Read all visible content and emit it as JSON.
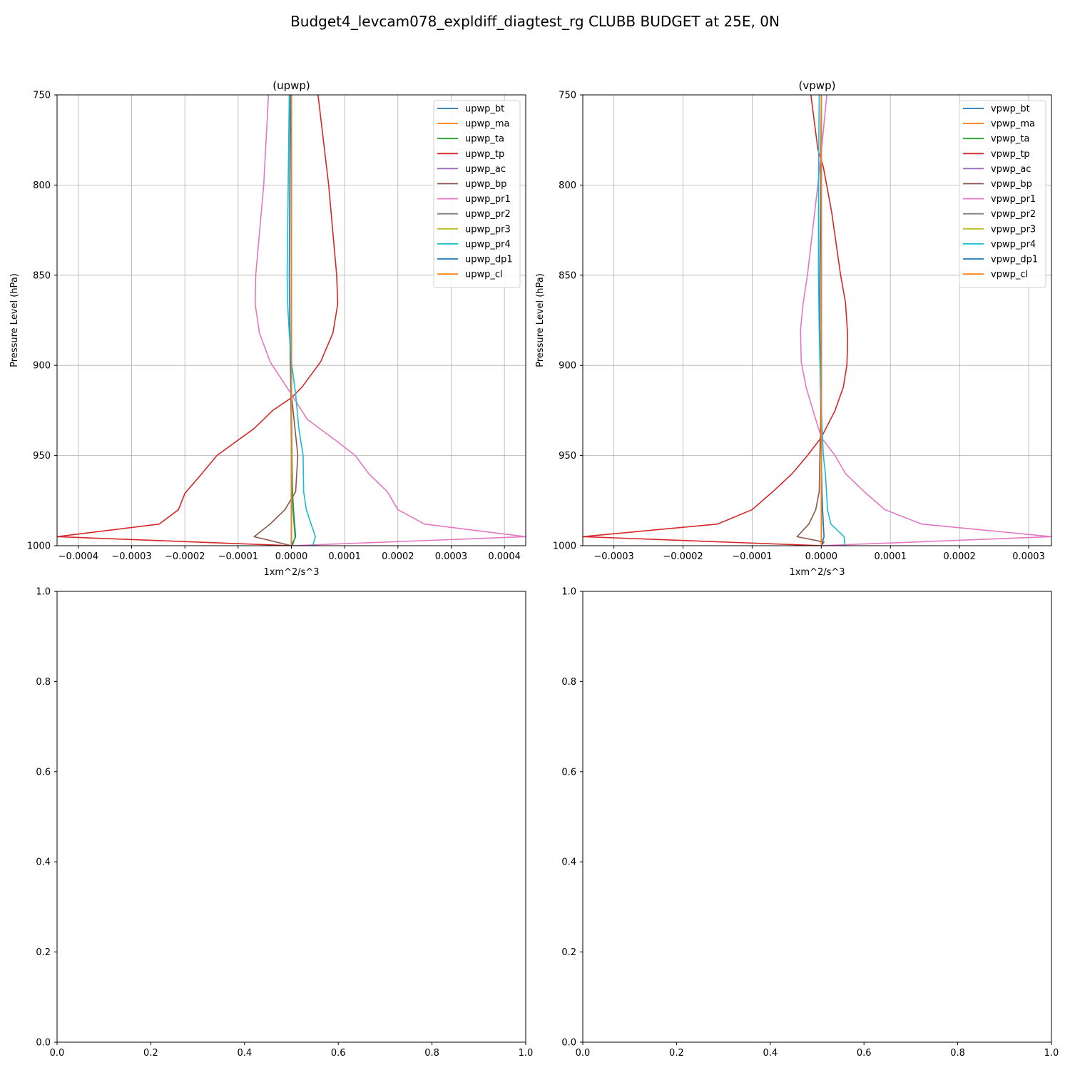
{
  "suptitle": "Budget4_levcam078_expldiff_diagtest_rg CLUBB BUDGET at 25E, 0N",
  "chart_data": [
    {
      "type": "line",
      "title": "(upwp)",
      "xlabel": "1xm^2/s^3",
      "ylabel": "Pressure Level (hPa)",
      "xlim": [
        -0.00044,
        0.00044
      ],
      "ylim": [
        1000,
        750
      ],
      "y_inverted": true,
      "grid": true,
      "legend": "upper right",
      "xticks": [
        -0.0004,
        -0.0003,
        -0.0002,
        -0.0001,
        0.0,
        0.0001,
        0.0002,
        0.0003,
        0.0004
      ],
      "xtick_labels": [
        "−0.0004",
        "−0.0003",
        "−0.0002",
        "−0.0001",
        "0.0000",
        "0.0001",
        "0.0002",
        "0.0003",
        "0.0004"
      ],
      "yticks": [
        750,
        800,
        850,
        900,
        950,
        1000
      ],
      "ytick_labels": [
        "750",
        "800",
        "850",
        "900",
        "950",
        "1000"
      ],
      "series": [
        {
          "name": "upwp_bt",
          "color": "#1f77b4",
          "x": [
            -2e-06,
            -3e-06,
            -4e-06,
            -3e-06,
            -1e-06,
            0,
            2e-06,
            4e-06,
            6e-06,
            8e-06,
            0
          ],
          "y": [
            750,
            800,
            850,
            880,
            916,
            950,
            970,
            980,
            988,
            995,
            1000
          ]
        },
        {
          "name": "upwp_ma",
          "color": "#ff7f0e",
          "x": [
            0,
            0,
            0,
            0,
            0,
            0,
            0,
            0,
            0,
            0,
            0
          ],
          "y": [
            750,
            800,
            850,
            880,
            916,
            950,
            970,
            980,
            988,
            995,
            1000
          ]
        },
        {
          "name": "upwp_ta",
          "color": "#2ca02c",
          "x": [
            0,
            0,
            0,
            0,
            0,
            1e-06,
            2e-06,
            3e-06,
            5e-06,
            7e-06,
            2e-06
          ],
          "y": [
            750,
            800,
            850,
            880,
            916,
            950,
            970,
            980,
            988,
            995,
            1000
          ]
        },
        {
          "name": "upwp_tp",
          "color": "#d62728",
          "x": [
            5e-05,
            7e-05,
            8.5e-05,
            8.7e-05,
            7.8e-05,
            5.5e-05,
            2e-05,
            0,
            -3.5e-05,
            -7e-05,
            -0.00014,
            -0.000168,
            -0.0002,
            -0.000212,
            -0.000248,
            -0.00044,
            0
          ],
          "y": [
            750,
            800,
            850,
            866,
            882,
            898,
            912,
            918,
            925,
            935,
            950,
            960,
            971,
            980,
            988,
            995,
            1000
          ]
        },
        {
          "name": "upwp_ac",
          "color": "#9467bd",
          "x": [
            0,
            0,
            0,
            0,
            0,
            0,
            0,
            0,
            0,
            0,
            0
          ],
          "y": [
            750,
            800,
            850,
            880,
            916,
            950,
            970,
            980,
            988,
            995,
            1000
          ]
        },
        {
          "name": "upwp_bp",
          "color": "#8c564b",
          "x": [
            0,
            0,
            0,
            0,
            0,
            1.2e-05,
            8e-06,
            -1.2e-05,
            -4e-05,
            -7e-05,
            0
          ],
          "y": [
            750,
            800,
            850,
            880,
            916,
            950,
            970,
            980,
            988,
            995,
            1000
          ]
        },
        {
          "name": "upwp_pr1",
          "color": "#e377c2",
          "x": [
            -4.3e-05,
            -5.2e-05,
            -6.7e-05,
            -6.8e-05,
            -6e-05,
            -4e-05,
            0,
            3e-05,
            8.5e-05,
            0.00012,
            0.000145,
            0.00018,
            0.0002,
            0.00025,
            0.00044,
            0
          ],
          "y": [
            750,
            800,
            850,
            866,
            882,
            898,
            916,
            930,
            942,
            950,
            960,
            970,
            980,
            988,
            995,
            1000
          ]
        },
        {
          "name": "upwp_pr2",
          "color": "#7f7f7f",
          "x": [
            0,
            0,
            0,
            0,
            0,
            0,
            0,
            0,
            0,
            0,
            0
          ],
          "y": [
            750,
            800,
            850,
            880,
            916,
            950,
            970,
            980,
            988,
            995,
            1000
          ]
        },
        {
          "name": "upwp_pr3",
          "color": "#bcbd22",
          "x": [
            0,
            0,
            0,
            0,
            0,
            0,
            0,
            0,
            0,
            0,
            0
          ],
          "y": [
            750,
            800,
            850,
            880,
            916,
            950,
            970,
            980,
            988,
            995,
            1000
          ]
        },
        {
          "name": "upwp_pr4",
          "color": "#17becf",
          "x": [
            -4e-06,
            -6e-06,
            -8e-06,
            -7e-06,
            -4e-06,
            0,
            8e-06,
            1.4e-05,
            2.2e-05,
            2.3e-05,
            2.8e-05,
            4.5e-05,
            4e-05
          ],
          "y": [
            750,
            800,
            850,
            866,
            882,
            898,
            916,
            935,
            950,
            970,
            980,
            995,
            1000
          ]
        },
        {
          "name": "upwp_dp1",
          "color": "#1f77b4",
          "x": [
            0,
            0,
            0,
            0,
            0,
            0,
            0,
            0,
            0,
            0,
            0
          ],
          "y": [
            750,
            800,
            850,
            880,
            916,
            950,
            970,
            980,
            988,
            995,
            1000
          ]
        },
        {
          "name": "upwp_cl",
          "color": "#ff7f0e",
          "x": [
            0,
            0,
            0,
            0,
            0,
            0,
            0,
            0,
            0,
            0,
            0
          ],
          "y": [
            750,
            800,
            850,
            880,
            916,
            950,
            970,
            980,
            988,
            995,
            1000
          ]
        }
      ]
    },
    {
      "type": "line",
      "title": "(vpwp)",
      "xlabel": "1xm^2/s^3",
      "ylabel": "Pressure Level (hPa)",
      "xlim": [
        -0.000345,
        0.000333
      ],
      "ylim": [
        1000,
        750
      ],
      "y_inverted": true,
      "grid": true,
      "legend": "upper right",
      "xticks": [
        -0.0003,
        -0.0002,
        -0.0001,
        0.0,
        0.0001,
        0.0002,
        0.0003
      ],
      "xtick_labels": [
        "−0.0003",
        "−0.0002",
        "−0.0001",
        "0.0000",
        "0.0001",
        "0.0002",
        "0.0003"
      ],
      "yticks": [
        750,
        800,
        850,
        900,
        950,
        1000
      ],
      "ytick_labels": [
        "750",
        "800",
        "850",
        "900",
        "950",
        "1000"
      ],
      "series": [
        {
          "name": "vpwp_bt",
          "color": "#1f77b4",
          "x": [
            0,
            -1e-06,
            -2e-06,
            -2e-06,
            -1e-06,
            0,
            1e-06,
            2e-06,
            3e-06,
            4e-06,
            0
          ],
          "y": [
            750,
            800,
            850,
            880,
            916,
            950,
            970,
            980,
            988,
            995,
            1000
          ]
        },
        {
          "name": "vpwp_ma",
          "color": "#ff7f0e",
          "x": [
            0,
            0,
            0,
            0,
            0,
            0,
            0,
            0,
            0,
            0,
            0
          ],
          "y": [
            750,
            800,
            850,
            880,
            916,
            950,
            970,
            980,
            988,
            995,
            1000
          ]
        },
        {
          "name": "vpwp_ta",
          "color": "#2ca02c",
          "x": [
            0,
            0,
            0,
            0,
            0,
            0,
            0,
            0,
            0,
            0,
            0
          ],
          "y": [
            750,
            800,
            850,
            880,
            916,
            950,
            970,
            980,
            988,
            995,
            1000
          ]
        },
        {
          "name": "vpwp_tp",
          "color": "#d62728",
          "x": [
            -1.5e-05,
            -5e-06,
            3e-06,
            1.5e-05,
            2.8e-05,
            3.5e-05,
            3.8e-05,
            3.8e-05,
            3.7e-05,
            3.2e-05,
            2e-05,
            0,
            -2e-05,
            -4.2e-05,
            -7e-05,
            -0.0001,
            -0.00015,
            -0.000345,
            0
          ],
          "y": [
            750,
            780,
            790,
            815,
            850,
            865,
            882,
            890,
            900,
            912,
            925,
            940,
            950,
            960,
            970,
            980,
            988,
            995,
            1000
          ]
        },
        {
          "name": "vpwp_ac",
          "color": "#9467bd",
          "x": [
            0,
            0,
            0,
            0,
            0,
            0,
            0,
            0,
            0,
            0,
            0
          ],
          "y": [
            750,
            800,
            850,
            880,
            916,
            950,
            970,
            980,
            988,
            995,
            1000
          ]
        },
        {
          "name": "vpwp_bp",
          "color": "#8c564b",
          "x": [
            0,
            0,
            0,
            0,
            0,
            -2e-06,
            -3e-06,
            -8e-06,
            -1.8e-05,
            -3.5e-05,
            4e-06,
            0
          ],
          "y": [
            750,
            800,
            850,
            880,
            916,
            950,
            970,
            980,
            988,
            995,
            998,
            1000
          ]
        },
        {
          "name": "vpwp_pr1",
          "color": "#e377c2",
          "x": [
            8e-06,
            3e-06,
            -5e-06,
            -2e-05,
            -2.6e-05,
            -3e-05,
            -2.9e-05,
            -2.2e-05,
            -1.2e-05,
            0,
            2e-05,
            3.5e-05,
            6.2e-05,
            9.2e-05,
            0.000145,
            0.000333,
            -2e-06
          ],
          "y": [
            750,
            770,
            800,
            850,
            865,
            880,
            898,
            912,
            925,
            940,
            950,
            960,
            970,
            980,
            988,
            995,
            1000
          ]
        },
        {
          "name": "vpwp_pr2",
          "color": "#7f7f7f",
          "x": [
            0,
            0,
            0,
            0,
            0,
            0,
            0,
            0,
            0,
            0,
            0
          ],
          "y": [
            750,
            800,
            850,
            880,
            916,
            950,
            970,
            980,
            988,
            995,
            1000
          ]
        },
        {
          "name": "vpwp_pr3",
          "color": "#bcbd22",
          "x": [
            0,
            0,
            0,
            0,
            0,
            0,
            0,
            0,
            0,
            0,
            0
          ],
          "y": [
            750,
            800,
            850,
            880,
            916,
            950,
            970,
            980,
            988,
            995,
            1000
          ]
        },
        {
          "name": "vpwp_pr4",
          "color": "#17becf",
          "x": [
            -3e-06,
            -4e-06,
            -4e-06,
            -3e-06,
            -1e-06,
            3e-06,
            6e-06,
            9e-06,
            1.4e-05,
            3.3e-05,
            3.4e-05,
            3.4e-05
          ],
          "y": [
            750,
            800,
            850,
            880,
            916,
            950,
            960,
            980,
            988,
            995,
            998,
            1000
          ]
        },
        {
          "name": "vpwp_dp1",
          "color": "#1f77b4",
          "x": [
            0,
            0,
            0,
            0,
            0,
            0,
            0,
            0,
            0,
            0,
            0
          ],
          "y": [
            750,
            800,
            850,
            880,
            916,
            950,
            970,
            980,
            988,
            995,
            1000
          ]
        },
        {
          "name": "vpwp_cl",
          "color": "#ff7f0e",
          "x": [
            0,
            0,
            0,
            0,
            0,
            0,
            0,
            0,
            0,
            0,
            0
          ],
          "y": [
            750,
            800,
            850,
            880,
            916,
            950,
            970,
            980,
            988,
            995,
            1000
          ]
        }
      ]
    },
    {
      "type": "line",
      "title": "",
      "xlim": [
        0,
        1
      ],
      "ylim": [
        0,
        1
      ],
      "grid": false,
      "xticks": [
        0.0,
        0.2,
        0.4,
        0.6,
        0.8,
        1.0
      ],
      "xtick_labels": [
        "0.0",
        "0.2",
        "0.4",
        "0.6",
        "0.8",
        "1.0"
      ],
      "yticks": [
        0.0,
        0.2,
        0.4,
        0.6,
        0.8,
        1.0
      ],
      "ytick_labels": [
        "0.0",
        "0.2",
        "0.4",
        "0.6",
        "0.8",
        "1.0"
      ],
      "series": []
    },
    {
      "type": "line",
      "title": "",
      "xlim": [
        0,
        1
      ],
      "ylim": [
        0,
        1
      ],
      "grid": false,
      "xticks": [
        0.0,
        0.2,
        0.4,
        0.6,
        0.8,
        1.0
      ],
      "xtick_labels": [
        "0.0",
        "0.2",
        "0.4",
        "0.6",
        "0.8",
        "1.0"
      ],
      "yticks": [
        0.0,
        0.2,
        0.4,
        0.6,
        0.8,
        1.0
      ],
      "ytick_labels": [
        "0.0",
        "0.2",
        "0.4",
        "0.6",
        "0.8",
        "1.0"
      ],
      "series": []
    }
  ]
}
